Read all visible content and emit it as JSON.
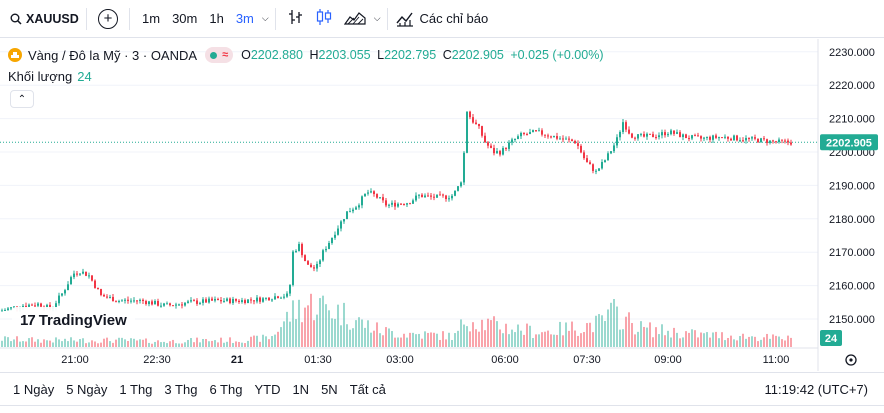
{
  "toolbar": {
    "symbol": "XAUUSD",
    "intervals": [
      "1m",
      "30m",
      "1h",
      "3m"
    ],
    "active_interval": "3m",
    "indicators_label": "Các chỉ báo"
  },
  "legend": {
    "title": "Vàng / Đô la Mỹ · 3 · OANDA",
    "ohlc": [
      {
        "k": "O",
        "v": "2202.880"
      },
      {
        "k": "H",
        "v": "2203.055"
      },
      {
        "k": "L",
        "v": "2202.795"
      },
      {
        "k": "C",
        "v": "2202.905"
      }
    ],
    "change": "+0.025 (+0.00%)",
    "volume_label": "Khối lượng",
    "volume_value": "24"
  },
  "brand": "TradingView",
  "price_axis": {
    "labels": [
      "2230.000",
      "2220.000",
      "2210.000",
      "2200.000",
      "2190.000",
      "2180.000",
      "2170.000",
      "2160.000",
      "2150.000"
    ],
    "current_price": "2202.905",
    "current_volume": "24"
  },
  "time_axis": {
    "labels": [
      "21:00",
      "22:30",
      "21",
      "01:30",
      "03:00",
      "06:00",
      "07:30",
      "09:00",
      "11:00"
    ]
  },
  "bottom_bar": {
    "ranges": [
      "1 Ngày",
      "5 Ngày",
      "1 Thg",
      "3 Thg",
      "6 Thg",
      "YTD",
      "1N",
      "5N",
      "Tất cả"
    ],
    "clock": "11:19:42 (UTC+7)"
  },
  "colors": {
    "up": "#22ab94",
    "down": "#f23645",
    "accent": "#2962ff"
  },
  "chart_data": {
    "type": "candlestick",
    "ylim": [
      2145,
      2232
    ],
    "current": 2202.905,
    "close_path": [
      [
        0,
        2152.5
      ],
      [
        20,
        2154
      ],
      [
        38,
        2154.5
      ],
      [
        50,
        2153
      ],
      [
        62,
        2158
      ],
      [
        72,
        2163.5
      ],
      [
        78,
        2164.5
      ],
      [
        88,
        2163
      ],
      [
        100,
        2157
      ],
      [
        118,
        2155.5
      ],
      [
        140,
        2155.5
      ],
      [
        165,
        2154
      ],
      [
        190,
        2155
      ],
      [
        215,
        2155.5
      ],
      [
        240,
        2155.5
      ],
      [
        262,
        2156
      ],
      [
        278,
        2157
      ],
      [
        288,
        2157
      ],
      [
        292,
        2170
      ],
      [
        298,
        2172
      ],
      [
        306,
        2166
      ],
      [
        315,
        2165
      ],
      [
        322,
        2170
      ],
      [
        330,
        2174
      ],
      [
        338,
        2178
      ],
      [
        346,
        2182
      ],
      [
        356,
        2184
      ],
      [
        366,
        2188
      ],
      [
        374,
        2187
      ],
      [
        386,
        2184
      ],
      [
        396,
        2184.5
      ],
      [
        408,
        2185
      ],
      [
        418,
        2187
      ],
      [
        430,
        2186.5
      ],
      [
        444,
        2186.5
      ],
      [
        452,
        2187
      ],
      [
        458,
        2190
      ],
      [
        462,
        2193
      ],
      [
        465,
        2213
      ],
      [
        470,
        2210
      ],
      [
        478,
        2207
      ],
      [
        484,
        2203
      ],
      [
        492,
        2200
      ],
      [
        500,
        2200
      ],
      [
        510,
        2203
      ],
      [
        520,
        2205
      ],
      [
        535,
        2206
      ],
      [
        548,
        2205
      ],
      [
        560,
        2204
      ],
      [
        575,
        2203
      ],
      [
        585,
        2197
      ],
      [
        595,
        2194
      ],
      [
        605,
        2198
      ],
      [
        615,
        2203
      ],
      [
        622,
        2209
      ],
      [
        630,
        2205
      ],
      [
        642,
        2204.5
      ],
      [
        655,
        2205
      ],
      [
        668,
        2206
      ],
      [
        685,
        2204.5
      ],
      [
        700,
        2204
      ],
      [
        720,
        2204.5
      ],
      [
        740,
        2204
      ],
      [
        760,
        2203.5
      ],
      [
        775,
        2203
      ],
      [
        790,
        2202.9
      ]
    ],
    "volume_path": [
      [
        0,
        6
      ],
      [
        40,
        5
      ],
      [
        80,
        5
      ],
      [
        120,
        5
      ],
      [
        160,
        4
      ],
      [
        200,
        5
      ],
      [
        240,
        5
      ],
      [
        270,
        7
      ],
      [
        290,
        25
      ],
      [
        300,
        30
      ],
      [
        315,
        32
      ],
      [
        330,
        28
      ],
      [
        345,
        24
      ],
      [
        360,
        18
      ],
      [
        380,
        12
      ],
      [
        400,
        10
      ],
      [
        430,
        9
      ],
      [
        455,
        8
      ],
      [
        465,
        22
      ],
      [
        480,
        18
      ],
      [
        500,
        15
      ],
      [
        520,
        13
      ],
      [
        540,
        11
      ],
      [
        560,
        13
      ],
      [
        580,
        15
      ],
      [
        600,
        18
      ],
      [
        612,
        26
      ],
      [
        625,
        20
      ],
      [
        640,
        14
      ],
      [
        660,
        12
      ],
      [
        700,
        9
      ],
      [
        740,
        8
      ],
      [
        790,
        6
      ]
    ]
  }
}
